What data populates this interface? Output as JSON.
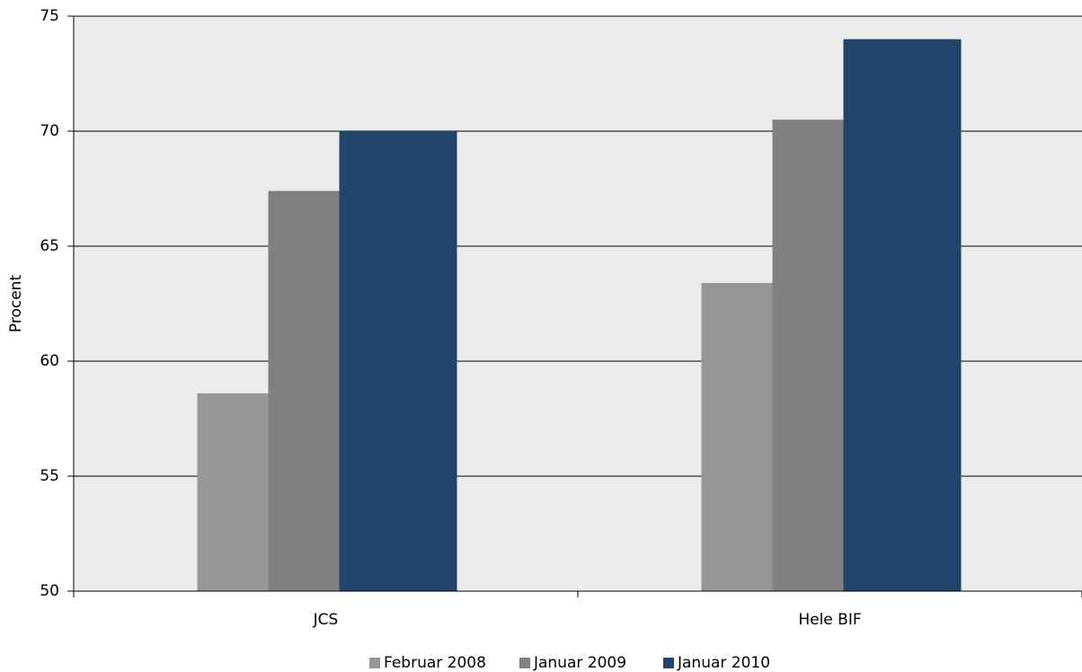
{
  "chart_data": {
    "type": "bar",
    "y_label": "Procent",
    "categories": [
      "JCS",
      "Hele BIF"
    ],
    "series": [
      {
        "name": "Februar 2008",
        "color": "#969696",
        "values": [
          58.6,
          63.4
        ]
      },
      {
        "name": "Januar 2009",
        "color": "#808080",
        "values": [
          67.4,
          70.5
        ]
      },
      {
        "name": "Januar 2010",
        "color": "#23446a",
        "values": [
          70,
          74
        ]
      }
    ],
    "ylim": [
      50,
      75
    ],
    "yticks": [
      50,
      55,
      60,
      65,
      70,
      75
    ],
    "grid": true
  }
}
